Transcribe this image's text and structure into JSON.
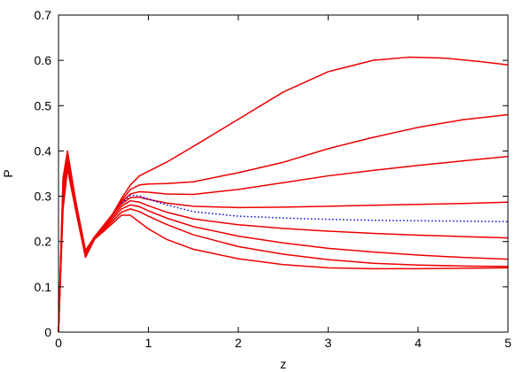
{
  "chart_data": {
    "type": "line",
    "title": "",
    "xlabel": "z",
    "ylabel": "P",
    "xlim": [
      0,
      5
    ],
    "ylim": [
      0,
      0.7
    ],
    "x_ticks": [
      0,
      1,
      2,
      3,
      4,
      5
    ],
    "y_ticks": [
      0,
      0.1,
      0.2,
      0.3,
      0.4,
      0.5,
      0.6,
      0.7
    ],
    "x_tick_labels": [
      "0",
      "1",
      "2",
      "3",
      "4",
      "5"
    ],
    "y_tick_labels": [
      "0",
      "0.1",
      "0.2",
      "0.3",
      "0.4",
      "0.5",
      "0.6",
      "0.7"
    ],
    "grid": false,
    "legend": "none",
    "colors": {
      "solid": "#ee0000",
      "dotted": "#0000ee",
      "axes": "#000000"
    },
    "series": [
      {
        "style": "solid",
        "color": "#ee0000",
        "x": [
          0,
          0.05,
          0.1,
          0.2,
          0.3,
          0.4,
          0.5,
          0.6,
          0.7,
          0.8,
          0.9,
          1.0,
          1.2,
          1.5,
          2.0,
          2.5,
          3.0,
          3.5,
          3.9,
          4.3,
          4.7,
          5.0
        ],
        "y": [
          0,
          0.34,
          0.4,
          0.28,
          0.18,
          0.21,
          0.235,
          0.26,
          0.295,
          0.325,
          0.345,
          0.355,
          0.375,
          0.41,
          0.47,
          0.53,
          0.575,
          0.6,
          0.607,
          0.605,
          0.597,
          0.59
        ]
      },
      {
        "style": "solid",
        "color": "#ee0000",
        "x": [
          0,
          0.05,
          0.1,
          0.2,
          0.3,
          0.4,
          0.5,
          0.6,
          0.7,
          0.8,
          0.9,
          1.0,
          1.2,
          1.5,
          2.0,
          2.5,
          3.0,
          3.5,
          4.0,
          4.5,
          5.0
        ],
        "y": [
          0,
          0.33,
          0.39,
          0.28,
          0.18,
          0.21,
          0.235,
          0.26,
          0.29,
          0.315,
          0.325,
          0.327,
          0.328,
          0.332,
          0.352,
          0.375,
          0.405,
          0.43,
          0.452,
          0.469,
          0.48
        ]
      },
      {
        "style": "solid",
        "color": "#ee0000",
        "x": [
          0,
          0.05,
          0.1,
          0.2,
          0.3,
          0.4,
          0.5,
          0.6,
          0.7,
          0.8,
          0.9,
          1.0,
          1.2,
          1.5,
          2.0,
          2.5,
          3.0,
          3.5,
          4.0,
          4.5,
          5.0
        ],
        "y": [
          0,
          0.32,
          0.385,
          0.28,
          0.18,
          0.21,
          0.235,
          0.26,
          0.287,
          0.305,
          0.31,
          0.309,
          0.305,
          0.304,
          0.315,
          0.33,
          0.345,
          0.357,
          0.368,
          0.378,
          0.388
        ]
      },
      {
        "style": "solid",
        "color": "#ee0000",
        "x": [
          0,
          0.05,
          0.1,
          0.2,
          0.3,
          0.4,
          0.5,
          0.6,
          0.7,
          0.8,
          0.9,
          1.0,
          1.2,
          1.5,
          2.0,
          2.5,
          3.0,
          3.5,
          4.0,
          4.5,
          5.0
        ],
        "y": [
          0,
          0.31,
          0.38,
          0.28,
          0.175,
          0.21,
          0.235,
          0.26,
          0.283,
          0.297,
          0.298,
          0.293,
          0.285,
          0.278,
          0.275,
          0.276,
          0.278,
          0.28,
          0.282,
          0.284,
          0.287
        ]
      },
      {
        "style": "solid",
        "color": "#ee0000",
        "x": [
          0,
          0.05,
          0.1,
          0.2,
          0.3,
          0.4,
          0.5,
          0.6,
          0.7,
          0.8,
          0.9,
          1.0,
          1.2,
          1.5,
          2.0,
          2.5,
          3.0,
          3.5,
          4.0,
          4.5,
          5.0
        ],
        "y": [
          0,
          0.3,
          0.375,
          0.275,
          0.17,
          0.205,
          0.23,
          0.255,
          0.278,
          0.29,
          0.287,
          0.279,
          0.265,
          0.25,
          0.237,
          0.229,
          0.223,
          0.218,
          0.214,
          0.211,
          0.208
        ]
      },
      {
        "style": "solid",
        "color": "#ee0000",
        "x": [
          0,
          0.05,
          0.1,
          0.2,
          0.3,
          0.4,
          0.5,
          0.6,
          0.7,
          0.8,
          0.9,
          1.0,
          1.2,
          1.5,
          2.0,
          2.5,
          3.0,
          3.5,
          4.0,
          4.5,
          5.0
        ],
        "y": [
          0,
          0.29,
          0.37,
          0.27,
          0.168,
          0.205,
          0.228,
          0.25,
          0.272,
          0.281,
          0.277,
          0.268,
          0.252,
          0.233,
          0.212,
          0.197,
          0.185,
          0.177,
          0.17,
          0.165,
          0.161
        ]
      },
      {
        "style": "solid",
        "color": "#ee0000",
        "x": [
          0,
          0.05,
          0.1,
          0.2,
          0.3,
          0.4,
          0.5,
          0.6,
          0.7,
          0.8,
          0.9,
          1.0,
          1.2,
          1.5,
          2.0,
          2.5,
          3.0,
          3.5,
          4.0,
          4.5,
          5.0
        ],
        "y": [
          0,
          0.28,
          0.365,
          0.265,
          0.166,
          0.205,
          0.225,
          0.245,
          0.265,
          0.272,
          0.266,
          0.256,
          0.238,
          0.215,
          0.189,
          0.172,
          0.16,
          0.152,
          0.148,
          0.146,
          0.145
        ]
      },
      {
        "style": "solid",
        "color": "#ee0000",
        "x": [
          0,
          0.05,
          0.1,
          0.2,
          0.3,
          0.4,
          0.5,
          0.6,
          0.7,
          0.8,
          0.9,
          1.0,
          1.2,
          1.5,
          2.0,
          2.5,
          3.0,
          3.5,
          4.0,
          4.5,
          5.0
        ],
        "y": [
          0,
          0.27,
          0.36,
          0.26,
          0.165,
          0.205,
          0.222,
          0.24,
          0.258,
          0.258,
          0.243,
          0.228,
          0.205,
          0.183,
          0.162,
          0.149,
          0.142,
          0.14,
          0.14,
          0.141,
          0.142
        ]
      },
      {
        "style": "dotted",
        "color": "#0000ee",
        "x": [
          0.7,
          0.8,
          0.9,
          1.0,
          1.2,
          1.5,
          2.0,
          2.5,
          3.0,
          3.5,
          4.0,
          4.5,
          5.0
        ],
        "y": [
          0.285,
          0.302,
          0.301,
          0.294,
          0.281,
          0.266,
          0.256,
          0.252,
          0.249,
          0.247,
          0.246,
          0.245,
          0.244
        ]
      }
    ]
  }
}
